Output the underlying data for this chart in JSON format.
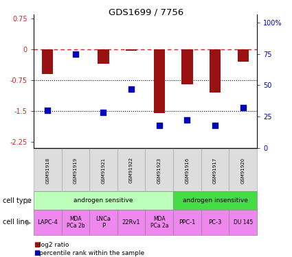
{
  "title": "GDS1699 / 7756",
  "samples": [
    "GSM91918",
    "GSM91919",
    "GSM91921",
    "GSM91922",
    "GSM91923",
    "GSM91916",
    "GSM91917",
    "GSM91920"
  ],
  "log2_ratio": [
    -0.6,
    0.0,
    -0.35,
    -0.04,
    -1.55,
    -0.85,
    -1.05,
    -0.3
  ],
  "percentile_rank": [
    30,
    75,
    28,
    47,
    18,
    22,
    18,
    32
  ],
  "cell_type_groups": [
    {
      "label": "androgen sensitive",
      "start": 0,
      "end": 5,
      "color": "#bbffbb"
    },
    {
      "label": "androgen insensitive",
      "start": 5,
      "end": 8,
      "color": "#44dd44"
    }
  ],
  "cell_lines": [
    {
      "label": "LAPC-4",
      "start": 0,
      "end": 1,
      "fontsize": 6
    },
    {
      "label": "MDA\nPCa 2b",
      "start": 1,
      "end": 2,
      "fontsize": 5.5
    },
    {
      "label": "LNCa\nP",
      "start": 2,
      "end": 3,
      "fontsize": 6
    },
    {
      "label": "22Rv1",
      "start": 3,
      "end": 4,
      "fontsize": 6
    },
    {
      "label": "MDA\nPCa 2a",
      "start": 4,
      "end": 5,
      "fontsize": 5.5
    },
    {
      "label": "PPC-1",
      "start": 5,
      "end": 6,
      "fontsize": 6
    },
    {
      "label": "PC-3",
      "start": 6,
      "end": 7,
      "fontsize": 6
    },
    {
      "label": "DU 145",
      "start": 7,
      "end": 8,
      "fontsize": 5.5
    }
  ],
  "cell_line_color": "#ee88ee",
  "bar_color": "#991111",
  "dot_color": "#0000bb",
  "dashed_line_color": "#cc2222",
  "ylim_left": [
    -2.4,
    0.85
  ],
  "yticks_left": [
    0.75,
    0,
    -0.75,
    -1.5,
    -2.25
  ],
  "ylim_right": [
    0,
    106.67
  ],
  "yticks_right": [
    0,
    25,
    50,
    75,
    100
  ],
  "ytick_labels_right": [
    "0",
    "25",
    "50",
    "75",
    "100%"
  ],
  "bar_width": 0.4,
  "dot_size": 30,
  "legend_labels": [
    "log2 ratio",
    "percentile rank within the sample"
  ],
  "legend_colors": [
    "#991111",
    "#0000bb"
  ]
}
